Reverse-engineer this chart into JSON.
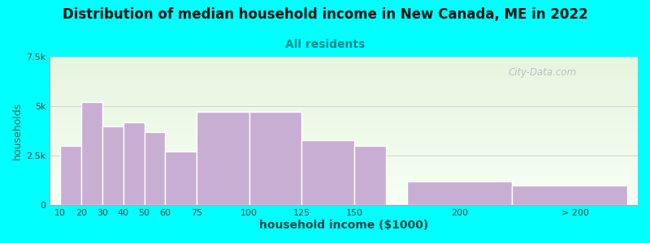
{
  "title": "Distribution of median household income in New Canada, ME in 2022",
  "subtitle": "All residents",
  "xlabel": "household income ($1000)",
  "ylabel": "households",
  "background_color": "#00FFFF",
  "plot_bg_color_top": "#e6f5e0",
  "plot_bg_color_bottom": "#f8fff8",
  "bar_color": "#c9aed4",
  "bar_edge_color": "#ffffff",
  "title_fontsize": 12,
  "subtitle_fontsize": 10,
  "subtitle_color": "#008888",
  "ylabel_color": "#336655",
  "xlabel_color": "#224444",
  "values": [
    3000,
    5200,
    4000,
    4200,
    3700,
    2700,
    4700,
    4700,
    3300,
    3000,
    1200,
    1000
  ],
  "bar_lefts": [
    10,
    20,
    30,
    40,
    50,
    60,
    75,
    100,
    125,
    150,
    175,
    225
  ],
  "bar_widths": [
    10,
    10,
    10,
    10,
    10,
    15,
    25,
    25,
    25,
    15,
    50,
    55
  ],
  "xtick_positions": [
    10,
    20,
    30,
    40,
    50,
    60,
    75,
    100,
    125,
    150,
    200,
    255
  ],
  "xtick_labels": [
    "10",
    "20",
    "30",
    "40",
    "50",
    "60",
    "75",
    "100",
    "125",
    "150",
    "200",
    "> 200"
  ],
  "ylim": [
    0,
    7500
  ],
  "yticks": [
    0,
    2500,
    5000,
    7500
  ],
  "ytick_labels": [
    "0",
    "2.5k",
    "5k",
    "7.5k"
  ],
  "xlim_left": 5,
  "xlim_right": 285,
  "watermark": "City-Data.com"
}
